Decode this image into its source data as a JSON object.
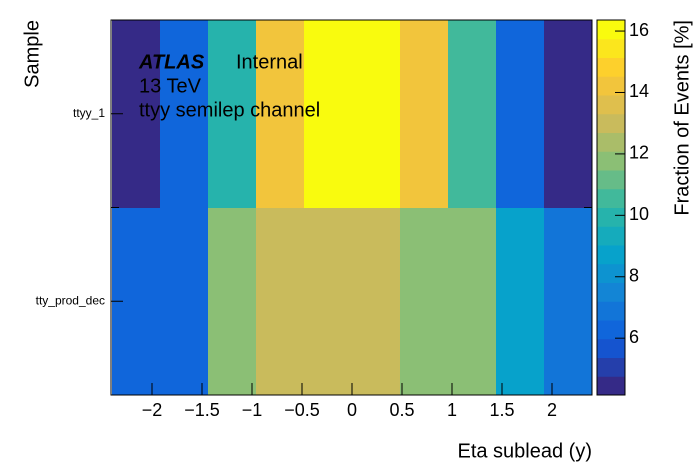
{
  "chart_data": {
    "type": "heatmap",
    "xlabel": "Eta sublead (y)",
    "ylabel": "Sample",
    "zlabel": "Fraction of Events [%]",
    "annotations": {
      "experiment": "ATLAS",
      "status": "Internal",
      "energy": "13 TeV",
      "channel": "ttyy semilep channel"
    },
    "x_edges": [
      -2.4,
      -1.92,
      -1.44,
      -0.96,
      -0.48,
      0,
      0.48,
      0.96,
      1.44,
      1.92,
      2.4
    ],
    "categories": [
      "tty_prod_dec",
      "ttyy_1"
    ],
    "values": [
      [
        6.3,
        6.5,
        12.0,
        12.7,
        12.7,
        12.7,
        12.0,
        12.0,
        8.8,
        6.8
      ],
      [
        4.6,
        6.5,
        10.2,
        14.5,
        16.2,
        16.2,
        14.5,
        10.5,
        6.5,
        4.6
      ]
    ],
    "xlim": [
      -2.41,
      2.4
    ],
    "xticks": [
      {
        "value": -2,
        "label": "−2"
      },
      {
        "value": -1.5,
        "label": "−1.5"
      },
      {
        "value": -1,
        "label": "−1"
      },
      {
        "value": -0.5,
        "label": "−0.5"
      },
      0,
      0.5,
      1,
      1.5,
      2
    ],
    "zlim": [
      4.15,
      16.36
    ],
    "zticks": [
      6,
      8,
      10,
      12,
      14,
      16
    ],
    "palette": [
      "#352a87",
      "#0f5cdd",
      "#1481d6",
      "#06a4ca",
      "#2eb7a4",
      "#87bf77",
      "#d1bb59",
      "#fec832",
      "#f9fb0e"
    ],
    "levels": 20
  }
}
